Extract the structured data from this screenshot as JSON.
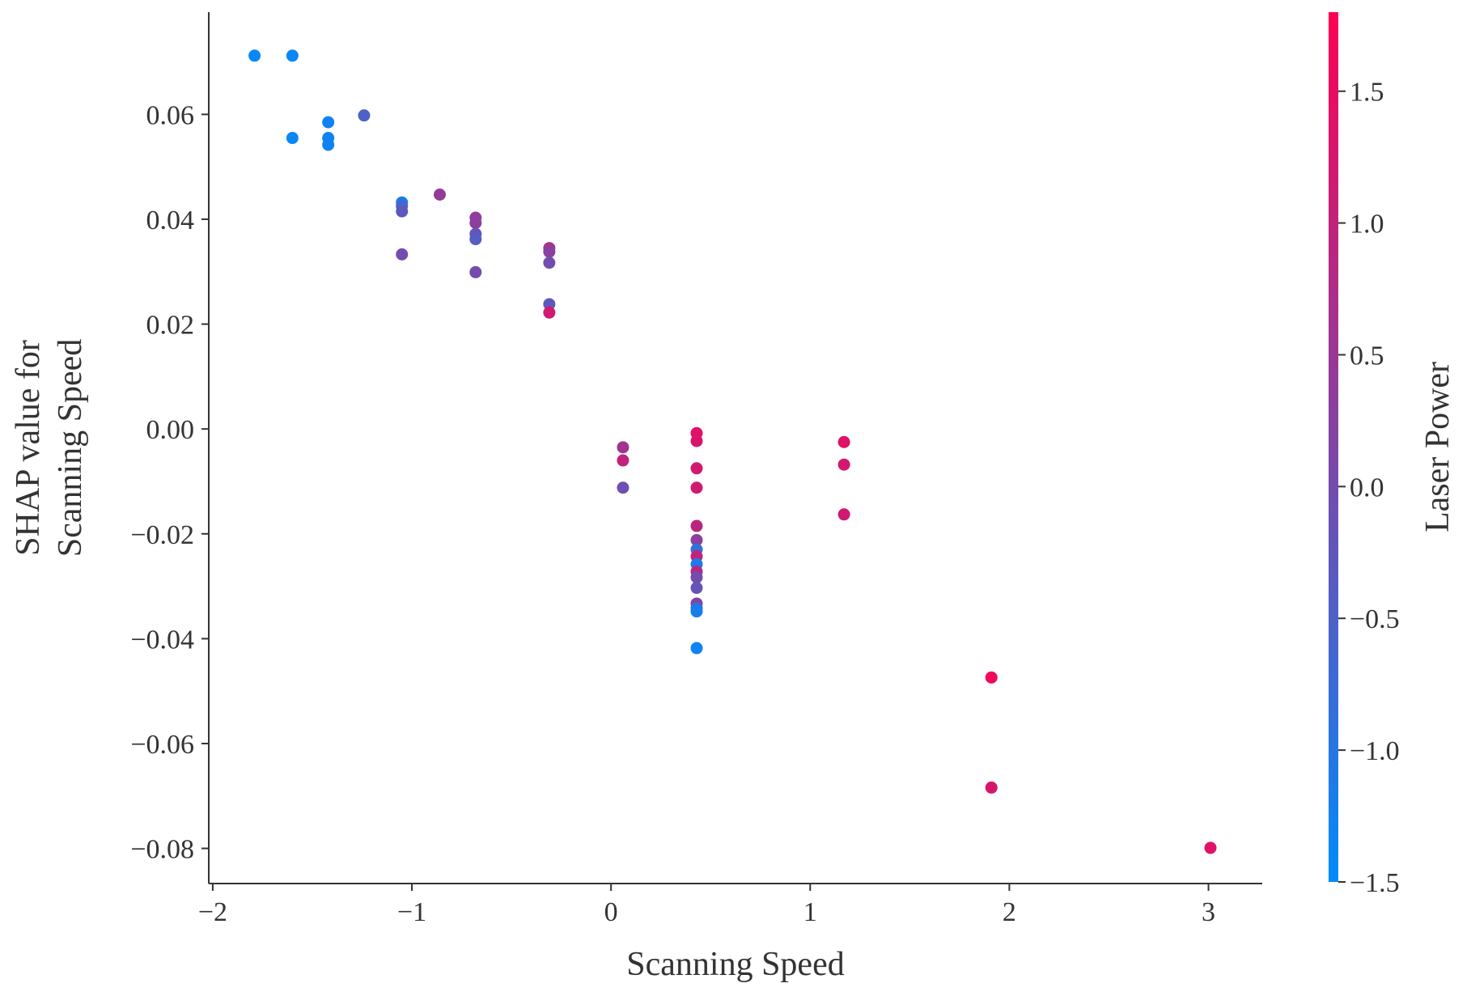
{
  "chart_data": {
    "type": "scatter",
    "title": "",
    "xlabel": "Scanning Speed",
    "ylabel_lines": [
      "SHAP value for",
      "Scanning Speed"
    ],
    "xlim": [
      -2.02,
      3.27
    ],
    "ylim": [
      -0.0867,
      0.0795
    ],
    "x_ticks": [
      {
        "value": -2,
        "label": "−2"
      },
      {
        "value": -1,
        "label": "−1"
      },
      {
        "value": 0,
        "label": "0"
      },
      {
        "value": 1,
        "label": "1"
      },
      {
        "value": 2,
        "label": "2"
      },
      {
        "value": 3,
        "label": "3"
      }
    ],
    "y_ticks": [
      {
        "value": 0.06,
        "label": "0.06"
      },
      {
        "value": 0.04,
        "label": "0.04"
      },
      {
        "value": 0.02,
        "label": "0.02"
      },
      {
        "value": 0.0,
        "label": "0.00"
      },
      {
        "value": -0.02,
        "label": "−0.02"
      },
      {
        "value": -0.04,
        "label": "−0.04"
      },
      {
        "value": -0.06,
        "label": "−0.06"
      },
      {
        "value": -0.08,
        "label": "−0.08"
      }
    ],
    "grid": false,
    "legend": "none",
    "colorbar": {
      "label": "Laser Power",
      "range": [
        -1.5,
        1.8
      ],
      "colors": [
        "#008bfb",
        "#ff0052"
      ],
      "ticks": [
        {
          "value": 1.5,
          "label": "1.5"
        },
        {
          "value": 1.0,
          "label": "1.0"
        },
        {
          "value": 0.5,
          "label": "0.5"
        },
        {
          "value": 0.0,
          "label": "0.0"
        },
        {
          "value": -0.5,
          "label": "−0.5"
        },
        {
          "value": -1.0,
          "label": "−1.0"
        },
        {
          "value": -1.5,
          "label": "−1.5"
        }
      ]
    },
    "points": [
      {
        "x": -1.79,
        "y": 0.0712,
        "c": -1.4
      },
      {
        "x": -1.6,
        "y": 0.0712,
        "c": -1.4
      },
      {
        "x": -1.6,
        "y": 0.0555,
        "c": -1.4
      },
      {
        "x": -1.42,
        "y": 0.0585,
        "c": -1.3
      },
      {
        "x": -1.42,
        "y": 0.0555,
        "c": -1.3
      },
      {
        "x": -1.42,
        "y": 0.0542,
        "c": -1.3
      },
      {
        "x": -1.24,
        "y": 0.0598,
        "c": -0.5
      },
      {
        "x": -1.05,
        "y": 0.0432,
        "c": -1.2
      },
      {
        "x": -1.05,
        "y": 0.0425,
        "c": -0.6
      },
      {
        "x": -1.05,
        "y": 0.0415,
        "c": -0.3
      },
      {
        "x": -1.05,
        "y": 0.0333,
        "c": 0.0
      },
      {
        "x": -0.86,
        "y": 0.0447,
        "c": 0.4
      },
      {
        "x": -0.68,
        "y": 0.0403,
        "c": 0.4
      },
      {
        "x": -0.68,
        "y": 0.0393,
        "c": 0.3
      },
      {
        "x": -0.68,
        "y": 0.0372,
        "c": -0.2
      },
      {
        "x": -0.68,
        "y": 0.0362,
        "c": -0.4
      },
      {
        "x": -0.68,
        "y": 0.0299,
        "c": 0.0
      },
      {
        "x": -0.31,
        "y": 0.0345,
        "c": 0.6
      },
      {
        "x": -0.31,
        "y": 0.0338,
        "c": 0.3
      },
      {
        "x": -0.31,
        "y": 0.0317,
        "c": 0.0
      },
      {
        "x": -0.31,
        "y": 0.0238,
        "c": -0.3
      },
      {
        "x": -0.31,
        "y": 0.0222,
        "c": 1.2
      },
      {
        "x": 0.06,
        "y": -0.0035,
        "c": 0.6
      },
      {
        "x": 0.06,
        "y": -0.006,
        "c": 1.0
      },
      {
        "x": 0.06,
        "y": -0.0112,
        "c": -0.1
      },
      {
        "x": 0.43,
        "y": -0.0008,
        "c": 1.4
      },
      {
        "x": 0.43,
        "y": -0.0023,
        "c": 1.3
      },
      {
        "x": 0.43,
        "y": -0.0075,
        "c": 1.2
      },
      {
        "x": 0.43,
        "y": -0.0112,
        "c": 1.2
      },
      {
        "x": 0.43,
        "y": -0.0185,
        "c": 0.9
      },
      {
        "x": 0.43,
        "y": -0.0212,
        "c": 0.3
      },
      {
        "x": 0.43,
        "y": -0.023,
        "c": -0.8
      },
      {
        "x": 0.43,
        "y": -0.0243,
        "c": 1.0
      },
      {
        "x": 0.43,
        "y": -0.0258,
        "c": -1.1
      },
      {
        "x": 0.43,
        "y": -0.0272,
        "c": 0.8
      },
      {
        "x": 0.43,
        "y": -0.0283,
        "c": 0.0
      },
      {
        "x": 0.43,
        "y": -0.0303,
        "c": -0.2
      },
      {
        "x": 0.43,
        "y": -0.0333,
        "c": 0.2
      },
      {
        "x": 0.43,
        "y": -0.0342,
        "c": -0.9
      },
      {
        "x": 0.43,
        "y": -0.0348,
        "c": -1.2
      },
      {
        "x": 0.43,
        "y": -0.0418,
        "c": -1.3
      },
      {
        "x": 1.17,
        "y": -0.0025,
        "c": 1.4
      },
      {
        "x": 1.17,
        "y": -0.0068,
        "c": 1.2
      },
      {
        "x": 1.17,
        "y": -0.0163,
        "c": 1.2
      },
      {
        "x": 1.91,
        "y": -0.0474,
        "c": 1.6
      },
      {
        "x": 1.91,
        "y": -0.0684,
        "c": 1.3
      },
      {
        "x": 3.01,
        "y": -0.0799,
        "c": 1.4
      }
    ]
  }
}
